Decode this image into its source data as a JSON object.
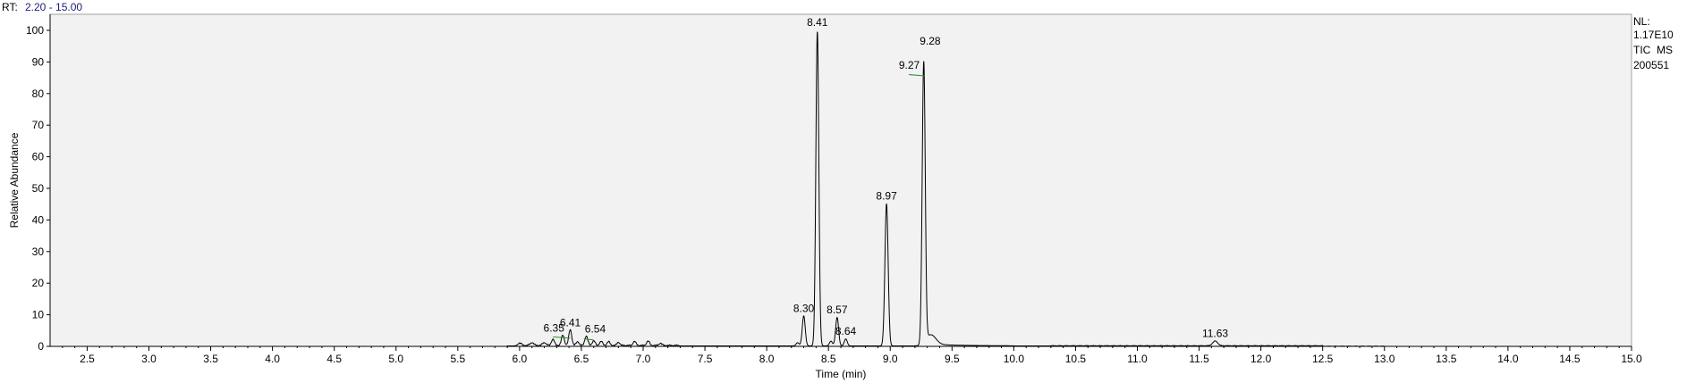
{
  "header": {
    "rt_prefix": "RT:",
    "rt_range": "2.20 - 15.00"
  },
  "info_panel": {
    "lines": [
      "NL:",
      "1.17E10",
      "TIC  MS",
      "200551"
    ]
  },
  "colors": {
    "plot_background": "#f2f2f2",
    "trace": "#000000",
    "baseline_marker": "#2e8b2e",
    "header_value": "#1a1a80"
  },
  "chart_data": {
    "type": "line",
    "title": "",
    "xlabel": "Time (min)",
    "ylabel": "Relative Abundance",
    "xlim": [
      2.2,
      15.0
    ],
    "ylim": [
      0,
      100
    ],
    "grid": false,
    "legend": "none",
    "x_ticks": [
      2.5,
      3.0,
      3.5,
      4.0,
      4.5,
      5.0,
      5.5,
      6.0,
      6.5,
      7.0,
      7.5,
      8.0,
      8.5,
      9.0,
      9.5,
      10.0,
      10.5,
      11.0,
      11.5,
      12.0,
      12.5,
      13.0,
      13.5,
      14.0,
      14.5,
      15.0
    ],
    "x_tick_labels": [
      "2.5",
      "3.0",
      "3.5",
      "4.0",
      "4.5",
      "5.0",
      "5.5",
      "6.0",
      "6.5",
      "7.0",
      "7.5",
      "8.0",
      "8.5",
      "9.0",
      "9.5",
      "10.0",
      "10.5",
      "11.0",
      "11.5",
      "12.0",
      "12.5",
      "13.0",
      "13.5",
      "14.0",
      "14.5",
      "15.0"
    ],
    "y_ticks": [
      0,
      10,
      20,
      30,
      40,
      50,
      60,
      70,
      80,
      90,
      100
    ],
    "y_tick_labels": [
      "0",
      "10",
      "20",
      "30",
      "40",
      "50",
      "60",
      "70",
      "80",
      "90",
      "100"
    ],
    "peaks": [
      {
        "rt": 6.0,
        "height": 0.8,
        "width": 0.015
      },
      {
        "rt": 6.1,
        "height": 0.9,
        "width": 0.015
      },
      {
        "rt": 6.2,
        "height": 0.9,
        "width": 0.015
      },
      {
        "rt": 6.27,
        "height": 2.0,
        "width": 0.012
      },
      {
        "rt": 6.35,
        "height": 3.2,
        "width": 0.012
      },
      {
        "rt": 6.41,
        "height": 5.0,
        "width": 0.012
      },
      {
        "rt": 6.47,
        "height": 1.2,
        "width": 0.012
      },
      {
        "rt": 6.54,
        "height": 3.0,
        "width": 0.012
      },
      {
        "rt": 6.6,
        "height": 1.5,
        "width": 0.012
      },
      {
        "rt": 6.66,
        "height": 1.3,
        "width": 0.012
      },
      {
        "rt": 6.72,
        "height": 1.2,
        "width": 0.012
      },
      {
        "rt": 6.8,
        "height": 1.0,
        "width": 0.012
      },
      {
        "rt": 6.93,
        "height": 1.3,
        "width": 0.012
      },
      {
        "rt": 7.04,
        "height": 1.4,
        "width": 0.012
      },
      {
        "rt": 7.14,
        "height": 0.7,
        "width": 0.012
      },
      {
        "rt": 8.25,
        "height": 1.0,
        "width": 0.012
      },
      {
        "rt": 8.3,
        "height": 9.5,
        "width": 0.012
      },
      {
        "rt": 8.41,
        "height": 99.5,
        "width": 0.012
      },
      {
        "rt": 8.52,
        "height": 1.5,
        "width": 0.012
      },
      {
        "rt": 8.57,
        "height": 9.0,
        "width": 0.012
      },
      {
        "rt": 8.64,
        "height": 2.2,
        "width": 0.012
      },
      {
        "rt": 8.97,
        "height": 45.0,
        "width": 0.013
      },
      {
        "rt": 9.27,
        "height": 82.0,
        "width": 0.012
      },
      {
        "rt": 9.28,
        "height": 11.0,
        "width": 0.01
      },
      {
        "rt": 9.33,
        "height": 3.0,
        "width": 0.04
      },
      {
        "rt": 11.63,
        "height": 1.5,
        "width": 0.02
      }
    ],
    "peak_labels": [
      {
        "rt": 6.35,
        "label": "6.35",
        "y": 3.2
      },
      {
        "rt": 6.41,
        "label": "6.41",
        "y": 5.0
      },
      {
        "rt": 6.54,
        "label": "6.54",
        "y": 3.0
      },
      {
        "rt": 8.3,
        "label": "8.30",
        "y": 9.5
      },
      {
        "rt": 8.41,
        "label": "8.41",
        "y": 100
      },
      {
        "rt": 8.57,
        "label": "8.57",
        "y": 9.0
      },
      {
        "rt": 8.64,
        "label": "8.64",
        "y": 2.2
      },
      {
        "rt": 8.97,
        "label": "8.97",
        "y": 45.0
      },
      {
        "rt": 9.27,
        "label": "9.27",
        "y": 86.5
      },
      {
        "rt": 9.28,
        "label": "9.28",
        "y": 94.0
      },
      {
        "rt": 11.63,
        "label": "11.63",
        "y": 1.5
      }
    ]
  }
}
